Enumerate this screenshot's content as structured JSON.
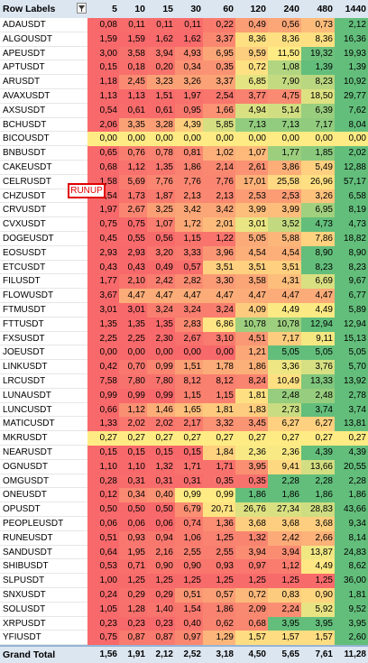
{
  "header": {
    "row_labels": "Row Labels",
    "filter_icon": "filter-dropdown-icon"
  },
  "columns": [
    "5",
    "10",
    "15",
    "30",
    "60",
    "120",
    "240",
    "480",
    "1440"
  ],
  "rows": [
    {
      "label": "ADAUSDT",
      "values": [
        "0,08",
        "0,11",
        "0,11",
        "0,11",
        "0,22",
        "0,49",
        "0,56",
        "0,73",
        "2,12"
      ]
    },
    {
      "label": "ALGOUSDT",
      "values": [
        "1,59",
        "1,59",
        "1,62",
        "1,62",
        "3,37",
        "8,36",
        "8,36",
        "8,36",
        "16,36"
      ]
    },
    {
      "label": "APEUSDT",
      "values": [
        "3,00",
        "3,58",
        "3,94",
        "4,93",
        "6,95",
        "9,59",
        "11,50",
        "19,32",
        "19,93"
      ]
    },
    {
      "label": "APTUSDT",
      "values": [
        "0,15",
        "0,18",
        "0,20",
        "0,34",
        "0,35",
        "0,72",
        "1,08",
        "1,39",
        "1,39"
      ]
    },
    {
      "label": "ARUSDT",
      "values": [
        "1,18",
        "2,45",
        "3,23",
        "3,26",
        "3,37",
        "6,85",
        "7,90",
        "8,23",
        "10,92"
      ]
    },
    {
      "label": "AVAXUSDT",
      "values": [
        "1,13",
        "1,13",
        "1,51",
        "1,97",
        "2,54",
        "3,77",
        "4,75",
        "18,50",
        "29,77"
      ]
    },
    {
      "label": "AXSUSDT",
      "values": [
        "0,54",
        "0,61",
        "0,61",
        "0,95",
        "1,66",
        "4,94",
        "5,14",
        "6,39",
        "7,62"
      ]
    },
    {
      "label": "BCHUSDT",
      "values": [
        "2,06",
        "3,35",
        "3,28",
        "4,39",
        "5,85",
        "7,13",
        "7,13",
        "7,17",
        "8,04"
      ]
    },
    {
      "label": "BICOUSDT",
      "values": [
        "0,00",
        "0,00",
        "0,00",
        "0,00",
        "0,00",
        "0,00",
        "0,00",
        "0,00",
        "0,00"
      ]
    },
    {
      "label": "BNBUSDT",
      "values": [
        "0,65",
        "0,76",
        "0,78",
        "0,81",
        "1,02",
        "1,07",
        "1,77",
        "1,85",
        "2,02"
      ]
    },
    {
      "label": "CAKEUSDT",
      "values": [
        "0,68",
        "1,12",
        "1,35",
        "1,86",
        "2,14",
        "2,61",
        "3,86",
        "5,49",
        "12,88"
      ]
    },
    {
      "label": "CELRUSDT",
      "values": [
        "1,58",
        "5,69",
        "7,76",
        "7,76",
        "7,76",
        "17,01",
        "25,58",
        "26,96",
        "57,17"
      ]
    },
    {
      "label": "CHZUSDT",
      "values": [
        "1,54",
        "1,73",
        "1,87",
        "2,13",
        "2,13",
        "2,53",
        "2,53",
        "3,26",
        "6,58"
      ]
    },
    {
      "label": "CRVUSDT",
      "values": [
        "1,97",
        "2,67",
        "3,25",
        "3,42",
        "3,42",
        "3,99",
        "3,99",
        "6,95",
        "8,19"
      ]
    },
    {
      "label": "CVXUSDT",
      "values": [
        "0,75",
        "0,75",
        "1,07",
        "1,72",
        "2,01",
        "3,01",
        "3,52",
        "4,73",
        "4,73"
      ]
    },
    {
      "label": "DOGEUSDT",
      "values": [
        "0,45",
        "0,55",
        "0,56",
        "1,15",
        "1,22",
        "5,05",
        "5,88",
        "7,86",
        "18,82"
      ]
    },
    {
      "label": "EOSUSDT",
      "values": [
        "2,93",
        "2,93",
        "3,20",
        "3,33",
        "3,96",
        "4,54",
        "4,54",
        "8,90",
        "8,90"
      ]
    },
    {
      "label": "ETCUSDT",
      "values": [
        "0,43",
        "0,43",
        "0,49",
        "0,57",
        "3,51",
        "3,51",
        "3,51",
        "8,23",
        "8,23"
      ]
    },
    {
      "label": "FILUSDT",
      "values": [
        "1,77",
        "2,10",
        "2,42",
        "2,82",
        "3,30",
        "3,58",
        "4,31",
        "6,69",
        "9,67"
      ]
    },
    {
      "label": "FLOWUSDT",
      "values": [
        "3,67",
        "4,47",
        "4,47",
        "4,47",
        "4,47",
        "4,47",
        "4,47",
        "4,47",
        "6,77"
      ]
    },
    {
      "label": "FTMUSDT",
      "values": [
        "3,01",
        "3,01",
        "3,24",
        "3,24",
        "3,24",
        "4,09",
        "4,49",
        "4,49",
        "5,89"
      ]
    },
    {
      "label": "FTTUSDT",
      "values": [
        "1,35",
        "1,35",
        "1,35",
        "2,83",
        "6,86",
        "10,78",
        "10,78",
        "12,94",
        "12,94"
      ]
    },
    {
      "label": "FXSUSDT",
      "values": [
        "2,25",
        "2,25",
        "2,30",
        "2,67",
        "3,10",
        "4,51",
        "7,17",
        "9,11",
        "15,13"
      ]
    },
    {
      "label": "JOEUSDT",
      "values": [
        "0,00",
        "0,00",
        "0,00",
        "0,00",
        "0,00",
        "1,21",
        "5,05",
        "5,05",
        "5,05"
      ]
    },
    {
      "label": "LINKUSDT",
      "values": [
        "0,42",
        "0,70",
        "0,99",
        "1,51",
        "1,78",
        "1,86",
        "3,36",
        "3,76",
        "5,70"
      ]
    },
    {
      "label": "LRCUSDT",
      "values": [
        "7,58",
        "7,80",
        "7,80",
        "8,12",
        "8,12",
        "8,24",
        "10,49",
        "13,33",
        "13,92"
      ]
    },
    {
      "label": "LUNAUSDT",
      "values": [
        "0,99",
        "0,99",
        "0,99",
        "1,15",
        "1,15",
        "1,81",
        "2,48",
        "2,48",
        "2,78"
      ]
    },
    {
      "label": "LUNCUSDT",
      "values": [
        "0,66",
        "1,12",
        "1,46",
        "1,65",
        "1,81",
        "1,83",
        "2,73",
        "3,74",
        "3,74"
      ]
    },
    {
      "label": "MATICUSDT",
      "values": [
        "1,33",
        "2,02",
        "2,02",
        "2,17",
        "3,32",
        "3,45",
        "6,27",
        "6,27",
        "13,81"
      ]
    },
    {
      "label": "MKRUSDT",
      "values": [
        "0,27",
        "0,27",
        "0,27",
        "0,27",
        "0,27",
        "0,27",
        "0,27",
        "0,27",
        "0,27"
      ]
    },
    {
      "label": "NEARUSDT",
      "values": [
        "0,15",
        "0,15",
        "0,15",
        "0,15",
        "1,84",
        "2,36",
        "2,36",
        "4,39",
        "4,39"
      ]
    },
    {
      "label": "OGNUSDT",
      "values": [
        "1,10",
        "1,10",
        "1,32",
        "1,71",
        "1,71",
        "3,95",
        "9,41",
        "13,66",
        "20,55"
      ]
    },
    {
      "label": "OMGUSDT",
      "values": [
        "0,28",
        "0,31",
        "0,31",
        "0,31",
        "0,35",
        "0,35",
        "2,28",
        "2,28",
        "2,28"
      ]
    },
    {
      "label": "ONEUSDT",
      "values": [
        "0,12",
        "0,34",
        "0,40",
        "0,99",
        "0,99",
        "1,86",
        "1,86",
        "1,86",
        "1,86"
      ]
    },
    {
      "label": "OPUSDT",
      "values": [
        "0,50",
        "0,50",
        "0,50",
        "6,79",
        "20,71",
        "26,76",
        "27,34",
        "28,83",
        "43,66"
      ]
    },
    {
      "label": "PEOPLEUSDT",
      "values": [
        "0,06",
        "0,06",
        "0,06",
        "0,74",
        "1,36",
        "3,68",
        "3,68",
        "3,68",
        "9,34"
      ]
    },
    {
      "label": "RUNEUSDT",
      "values": [
        "0,51",
        "0,93",
        "0,94",
        "1,06",
        "1,25",
        "1,32",
        "2,42",
        "2,66",
        "8,14"
      ]
    },
    {
      "label": "SANDUSDT",
      "values": [
        "0,64",
        "1,95",
        "2,16",
        "2,55",
        "2,55",
        "3,94",
        "3,94",
        "13,87",
        "24,83"
      ]
    },
    {
      "label": "SHIBUSDT",
      "values": [
        "0,53",
        "0,71",
        "0,90",
        "0,90",
        "0,93",
        "0,97",
        "1,12",
        "4,49",
        "8,62"
      ]
    },
    {
      "label": "SLPUSDT",
      "values": [
        "1,00",
        "1,25",
        "1,25",
        "1,25",
        "1,25",
        "1,25",
        "1,25",
        "1,25",
        "36,00"
      ]
    },
    {
      "label": "SNXUSDT",
      "values": [
        "0,24",
        "0,29",
        "0,29",
        "0,51",
        "0,57",
        "0,72",
        "0,83",
        "0,90",
        "1,81"
      ]
    },
    {
      "label": "SOLUSDT",
      "values": [
        "1,05",
        "1,28",
        "1,40",
        "1,54",
        "1,86",
        "2,09",
        "2,24",
        "5,92",
        "9,52"
      ]
    },
    {
      "label": "XRPUSDT",
      "values": [
        "0,23",
        "0,23",
        "0,23",
        "0,40",
        "0,62",
        "0,68",
        "3,95",
        "3,95",
        "3,95"
      ]
    },
    {
      "label": "YFIUSDT",
      "values": [
        "0,75",
        "0,87",
        "0,87",
        "0,97",
        "1,29",
        "1,57",
        "1,57",
        "1,57",
        "2,60"
      ]
    }
  ],
  "grand_total": {
    "label": "Grand Total",
    "values": [
      "1,56",
      "1,91",
      "2,12",
      "2,52",
      "3,18",
      "4,50",
      "5,65",
      "7,61",
      "11,28"
    ]
  },
  "annotation": {
    "text": "RUNUP",
    "color": "#e00000"
  },
  "colors": {
    "low": "#f8696b",
    "mid": "#ffeb84",
    "high": "#63be7b",
    "header_bg": "#dce6f1"
  }
}
